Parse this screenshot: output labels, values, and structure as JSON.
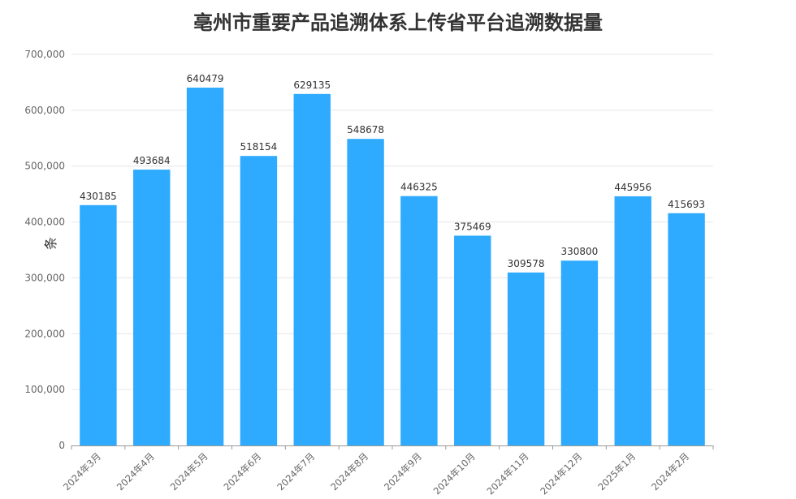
{
  "chart_data": {
    "type": "bar",
    "title": "亳州市重要产品追溯体系上传省平台追溯数据量",
    "xlabel": "",
    "ylabel": "条",
    "ylim": [
      0,
      700000
    ],
    "yticks": [
      "0",
      "100,000",
      "200,000",
      "300,000",
      "400,000",
      "500,000",
      "600,000",
      "700,000"
    ],
    "grid": true,
    "bar_color": "#2eabff",
    "categories": [
      "2024年3月",
      "2024年4月",
      "2024年5月",
      "2024年6月",
      "2024年7月",
      "2024年8月",
      "2024年9月",
      "2024年10月",
      "2024年11月",
      "2024年12月",
      "2025年1月",
      "2024年2月"
    ],
    "values": [
      430185,
      493684,
      640479,
      518154,
      629135,
      548678,
      446325,
      375469,
      309578,
      330800,
      445956,
      415693
    ]
  }
}
